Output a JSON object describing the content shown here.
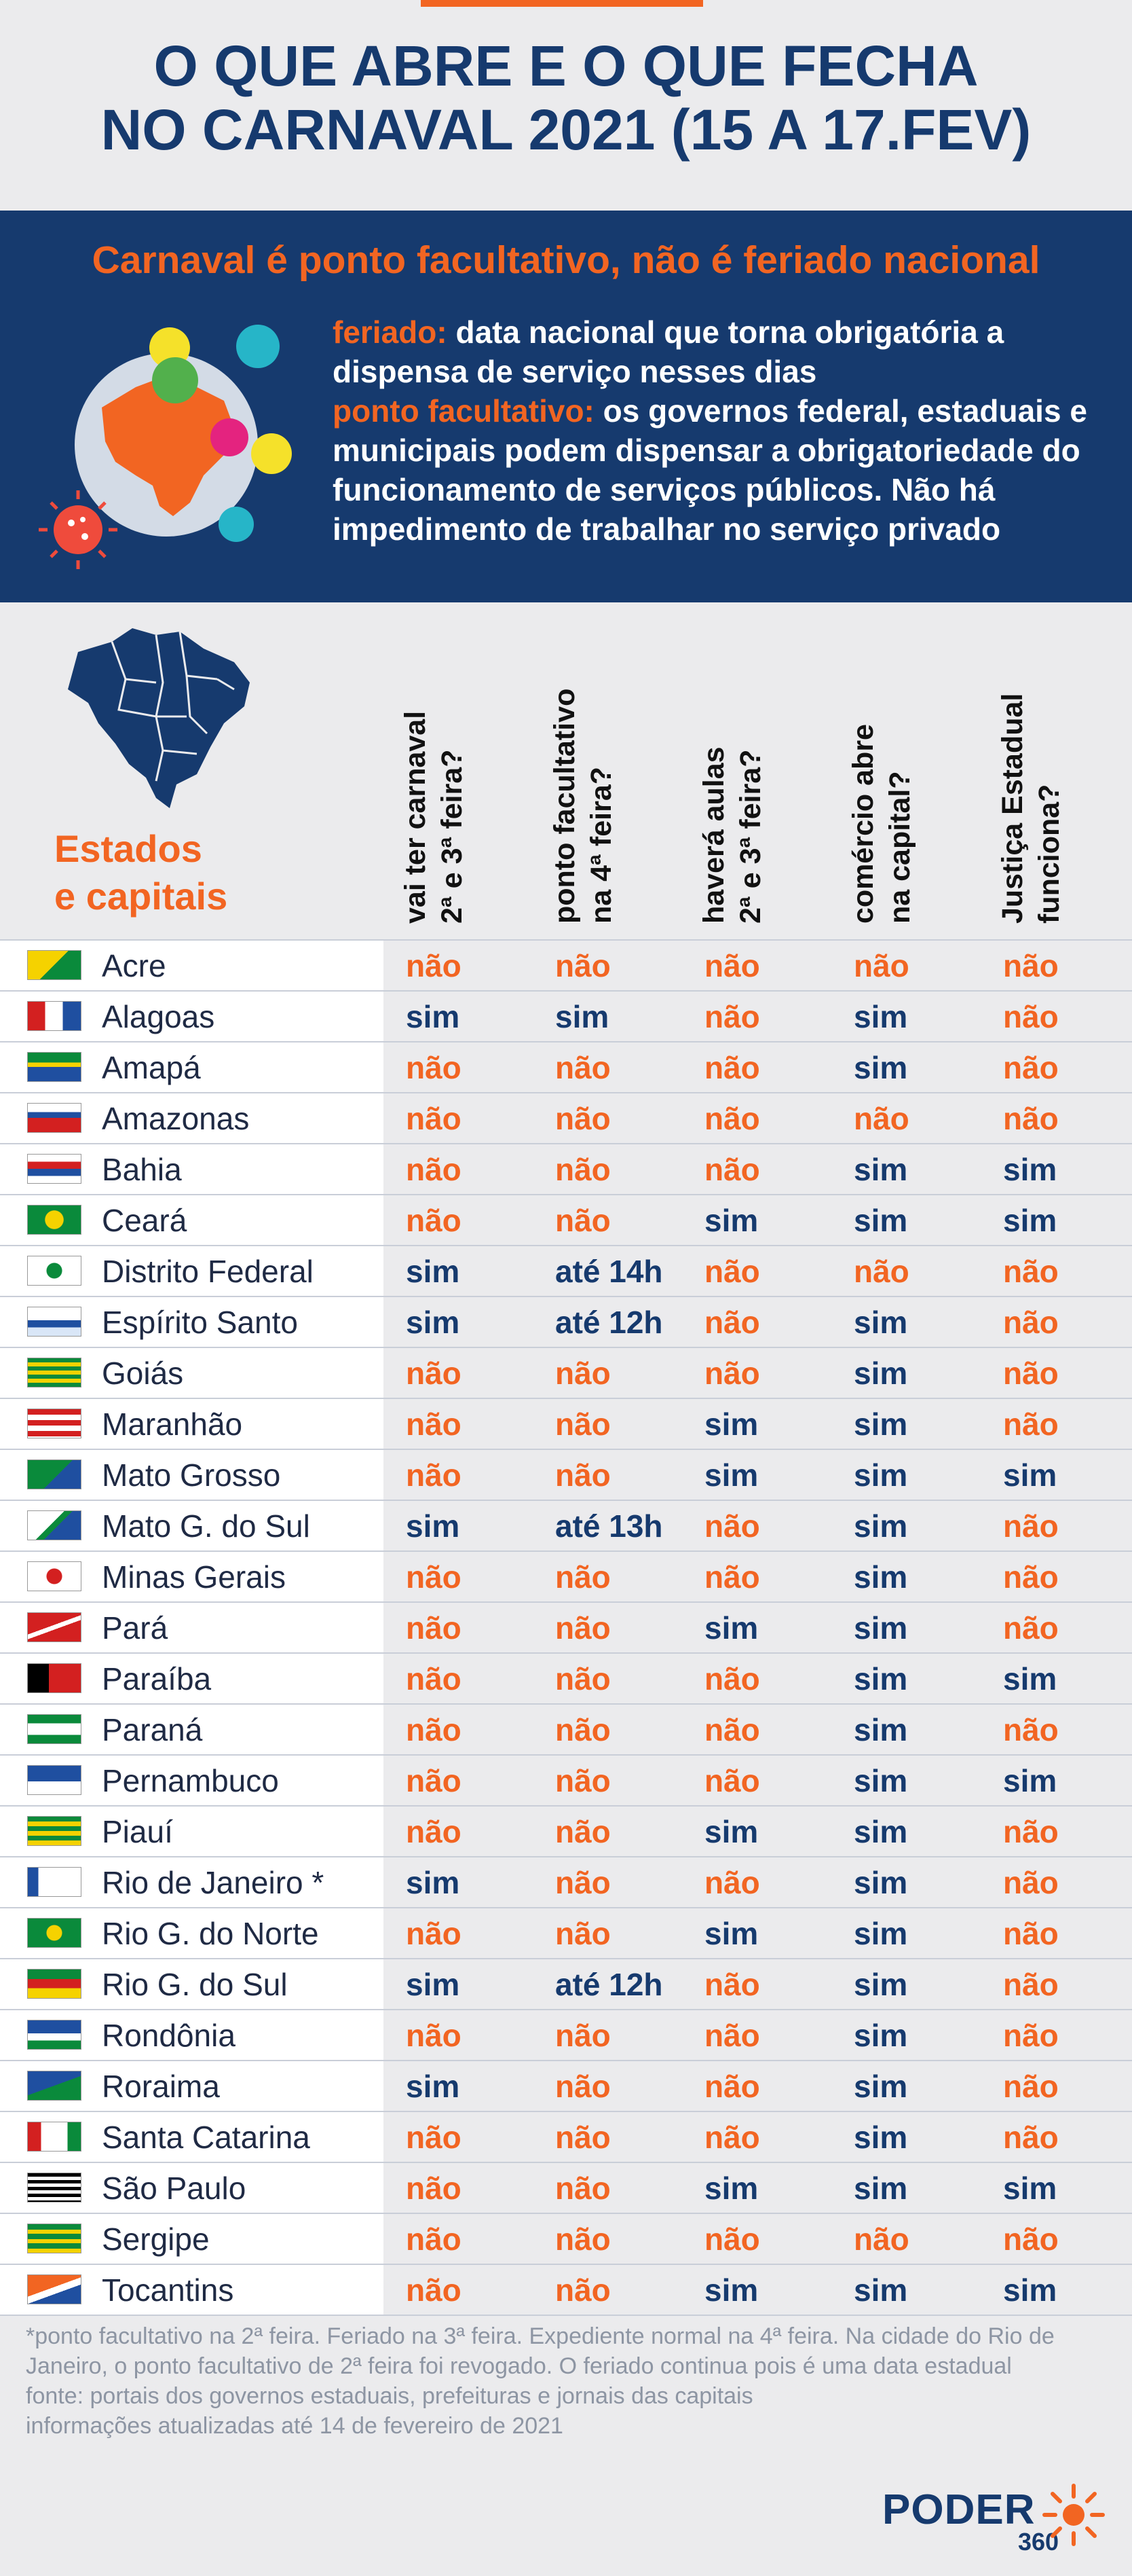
{
  "title": {
    "line1": "O QUE ABRE E O QUE FECHA",
    "line2": "NO CARNAVAL 2021 (15 A 17.FEV)"
  },
  "band": {
    "heading": "Carnaval é ponto facultativo, não é feriado nacional",
    "feriado_key": "feriado:",
    "feriado_text": " data nacional que torna obrigatória a dispensa de serviço nesses dias",
    "ponto_key": "ponto facultativo:",
    "ponto_text": " os governos federal, estaduais e municipais podem dispensar a obrigatoriedade do funcionamento de serviços públicos. Não há impedimento de trabalhar no serviço privado"
  },
  "table_label": {
    "line1": "Estados",
    "line2": "e capitais"
  },
  "columns": [
    {
      "line1": "vai ter carnaval",
      "line2": "2ª e 3ª feira?"
    },
    {
      "line1": "ponto facultativo",
      "line2": "na 4ª feira?"
    },
    {
      "line1": "haverá aulas",
      "line2": "2ª e 3ª feira?"
    },
    {
      "line1": "comércio abre",
      "line2": "na capital?"
    },
    {
      "line1": "Justiça Estadual",
      "line2": "funciona?"
    }
  ],
  "rows": [
    {
      "state": "Acre",
      "values": [
        "não",
        "não",
        "não",
        "não",
        "não"
      ]
    },
    {
      "state": "Alagoas",
      "values": [
        "sim",
        "sim",
        "não",
        "sim",
        "não"
      ]
    },
    {
      "state": "Amapá",
      "values": [
        "não",
        "não",
        "não",
        "sim",
        "não"
      ]
    },
    {
      "state": "Amazonas",
      "values": [
        "não",
        "não",
        "não",
        "não",
        "não"
      ]
    },
    {
      "state": "Bahia",
      "values": [
        "não",
        "não",
        "não",
        "sim",
        "sim"
      ]
    },
    {
      "state": "Ceará",
      "values": [
        "não",
        "não",
        "sim",
        "sim",
        "sim"
      ]
    },
    {
      "state": "Distrito Federal",
      "values": [
        "sim",
        "até 14h",
        "não",
        "não",
        "não"
      ]
    },
    {
      "state": "Espírito Santo",
      "values": [
        "sim",
        "até 12h",
        "não",
        "sim",
        "não"
      ]
    },
    {
      "state": "Goiás",
      "values": [
        "não",
        "não",
        "não",
        "sim",
        "não"
      ]
    },
    {
      "state": "Maranhão",
      "values": [
        "não",
        "não",
        "sim",
        "sim",
        "não"
      ]
    },
    {
      "state": "Mato Grosso",
      "values": [
        "não",
        "não",
        "sim",
        "sim",
        "sim"
      ]
    },
    {
      "state": "Mato G. do Sul",
      "values": [
        "sim",
        "até 13h",
        "não",
        "sim",
        "não"
      ]
    },
    {
      "state": "Minas Gerais",
      "values": [
        "não",
        "não",
        "não",
        "sim",
        "não"
      ]
    },
    {
      "state": "Pará",
      "values": [
        "não",
        "não",
        "sim",
        "sim",
        "não"
      ]
    },
    {
      "state": "Paraíba",
      "values": [
        "não",
        "não",
        "não",
        "sim",
        "sim"
      ]
    },
    {
      "state": "Paraná",
      "values": [
        "não",
        "não",
        "não",
        "sim",
        "não"
      ]
    },
    {
      "state": "Pernambuco",
      "values": [
        "não",
        "não",
        "não",
        "sim",
        "sim"
      ]
    },
    {
      "state": "Piauí",
      "values": [
        "não",
        "não",
        "sim",
        "sim",
        "não"
      ]
    },
    {
      "state": "Rio de Janeiro *",
      "values": [
        "sim",
        "não",
        "não",
        "sim",
        "não"
      ]
    },
    {
      "state": "Rio G. do Norte",
      "values": [
        "não",
        "não",
        "sim",
        "sim",
        "não"
      ]
    },
    {
      "state": "Rio G. do Sul",
      "values": [
        "sim",
        "até 12h",
        "não",
        "sim",
        "não"
      ]
    },
    {
      "state": "Rondônia",
      "values": [
        "não",
        "não",
        "não",
        "sim",
        "não"
      ]
    },
    {
      "state": "Roraima",
      "values": [
        "sim",
        "não",
        "não",
        "sim",
        "não"
      ]
    },
    {
      "state": "Santa Catarina",
      "values": [
        "não",
        "não",
        "não",
        "sim",
        "não"
      ]
    },
    {
      "state": "São Paulo",
      "values": [
        "não",
        "não",
        "sim",
        "sim",
        "sim"
      ]
    },
    {
      "state": "Sergipe",
      "values": [
        "não",
        "não",
        "não",
        "não",
        "não"
      ]
    },
    {
      "state": "Tocantins",
      "values": [
        "não",
        "não",
        "sim",
        "sim",
        "sim"
      ]
    }
  ],
  "footnote": {
    "note": "*ponto facultativo na 2ª feira. Feriado na 3ª feira. Expediente normal na 4ª feira. Na cidade do Rio de Janeiro, o ponto facultativo de 2ª feira foi revogado. O feriado continua pois é uma data estadual",
    "source": "fonte: portais dos governos estaduais, prefeituras e jornais das capitais",
    "updated": "informações atualizadas até 14 de fevereiro de 2021"
  },
  "logo": {
    "word": "PODER",
    "number": "360"
  },
  "colors": {
    "navy": "#163a6e",
    "orange": "#f26522",
    "background": "#ebebed"
  }
}
